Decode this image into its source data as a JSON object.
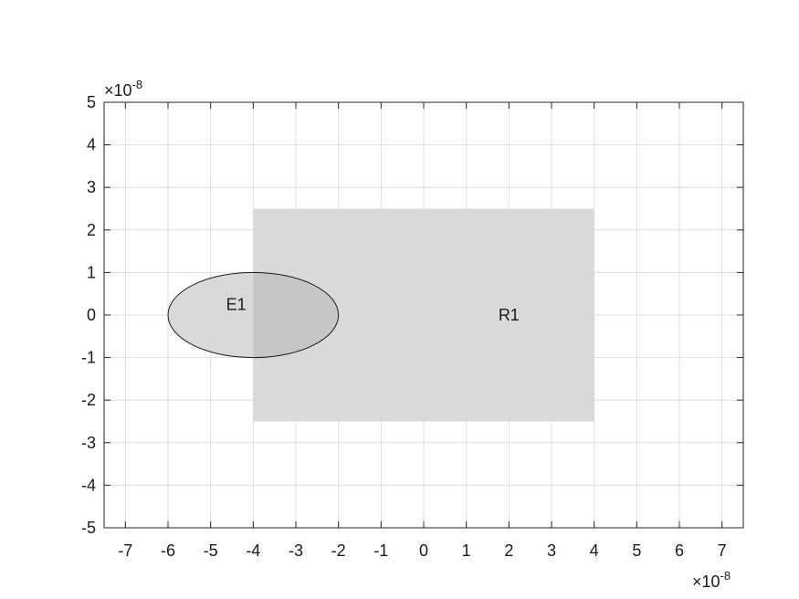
{
  "chart_data": {
    "type": "diagram",
    "xlim": [
      -7.5,
      7.5
    ],
    "ylim": [
      -5,
      5
    ],
    "x_ticks": [
      -7,
      -6,
      -5,
      -4,
      -3,
      -2,
      -1,
      0,
      1,
      2,
      3,
      4,
      5,
      6,
      7
    ],
    "y_ticks": [
      -5,
      -4,
      -3,
      -2,
      -1,
      0,
      1,
      2,
      3,
      4,
      5
    ],
    "x_exponent_label": {
      "base": "×10",
      "exp": "-8"
    },
    "y_exponent_label": {
      "base": "×10",
      "exp": "-8"
    },
    "grid": true,
    "shapes": [
      {
        "id": "R1",
        "type": "rectangle",
        "label": "R1",
        "x_min": -4,
        "x_max": 4,
        "y_min": -2.5,
        "y_max": 2.5,
        "fill": "#d9d9d9",
        "outline": false
      },
      {
        "id": "E1",
        "type": "ellipse",
        "label": "E1",
        "cx": -4,
        "cy": 0,
        "rx": 2,
        "ry": 1,
        "fill": "#d9d9d9",
        "overlap_fill": "#c6c6c6",
        "outline": "#1a1a1a"
      }
    ],
    "label_positions": {
      "R1": [
        2,
        0
      ],
      "E1": [
        -4.4,
        0.25
      ]
    }
  }
}
